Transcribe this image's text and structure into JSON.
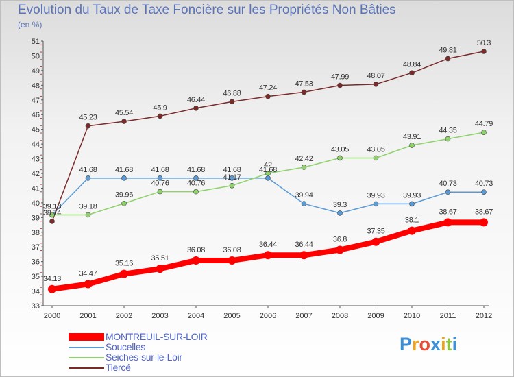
{
  "title": "Evolution du Taux de Taxe Foncière sur les Propriétés Non Bâties",
  "subtitle": "(en %)",
  "brand": {
    "text": "Proxiti",
    "colors": [
      "#3a8fd9",
      "#f0a21b",
      "#e84d3a",
      "#3a8fd9",
      "#f0a21b",
      "#8cc63f",
      "#3a8fd9"
    ]
  },
  "chart_data": {
    "type": "line",
    "x": [
      "2000",
      "2001",
      "2002",
      "2003",
      "2004",
      "2005",
      "2006",
      "2007",
      "2008",
      "2009",
      "2010",
      "2011",
      "2012"
    ],
    "ylim": [
      33,
      51
    ],
    "yticks": [
      "33",
      "34",
      "35",
      "36",
      "37",
      "38",
      "39",
      "40",
      "41",
      "42",
      "43",
      "44",
      "45",
      "46",
      "47",
      "48",
      "49",
      "50",
      "51"
    ],
    "grid": false,
    "legend_position": "bottom-left",
    "series": [
      {
        "name": "MONTREUIL-SUR-LOIR",
        "color": "#ff0000",
        "values": [
          34.13,
          34.47,
          35.16,
          35.51,
          36.08,
          36.08,
          36.44,
          36.44,
          36.8,
          37.35,
          38.1,
          38.67,
          38.67
        ],
        "labels": [
          "34.13",
          "34.47",
          "35.16",
          "35.51",
          "36.08",
          "36.08",
          "36.44",
          "36.44",
          "36.8",
          "37.35",
          "38.1",
          "38.67",
          "38.67"
        ]
      },
      {
        "name": "Soucelles",
        "color": "#5b9bd5",
        "values": [
          39.18,
          41.68,
          41.68,
          41.68,
          41.68,
          41.68,
          41.68,
          39.94,
          39.3,
          39.93,
          39.93,
          40.73,
          40.73
        ],
        "labels": [
          "39.18",
          "41.68",
          "41.68",
          "41.68",
          "41.68",
          "41.68",
          "41.68",
          "39.94",
          "39.3",
          "39.93",
          "39.93",
          "40.73",
          "40.73"
        ]
      },
      {
        "name": "Seiches-sur-le-Loir",
        "color": "#8fd16a",
        "values": [
          39.18,
          39.18,
          39.96,
          40.76,
          40.76,
          41.17,
          42,
          42.42,
          43.05,
          43.05,
          43.91,
          44.35,
          44.79
        ],
        "labels": [
          "39.18",
          "39.18",
          "39.96",
          "40.76",
          "40.76",
          "41.17",
          "42",
          "42.42",
          "43.05",
          "43.05",
          "43.91",
          "44.35",
          "44.79"
        ]
      },
      {
        "name": "Tiercé",
        "color": "#7b2a2a",
        "values": [
          38.74,
          45.23,
          45.54,
          45.9,
          46.44,
          46.88,
          47.24,
          47.53,
          47.99,
          48.07,
          48.84,
          49.81,
          50.3
        ],
        "labels": [
          "38.74",
          "45.23",
          "45.54",
          "45.9",
          "46.44",
          "46.88",
          "47.24",
          "47.53",
          "47.99",
          "48.07",
          "48.84",
          "49.81",
          "50.3"
        ]
      }
    ]
  }
}
